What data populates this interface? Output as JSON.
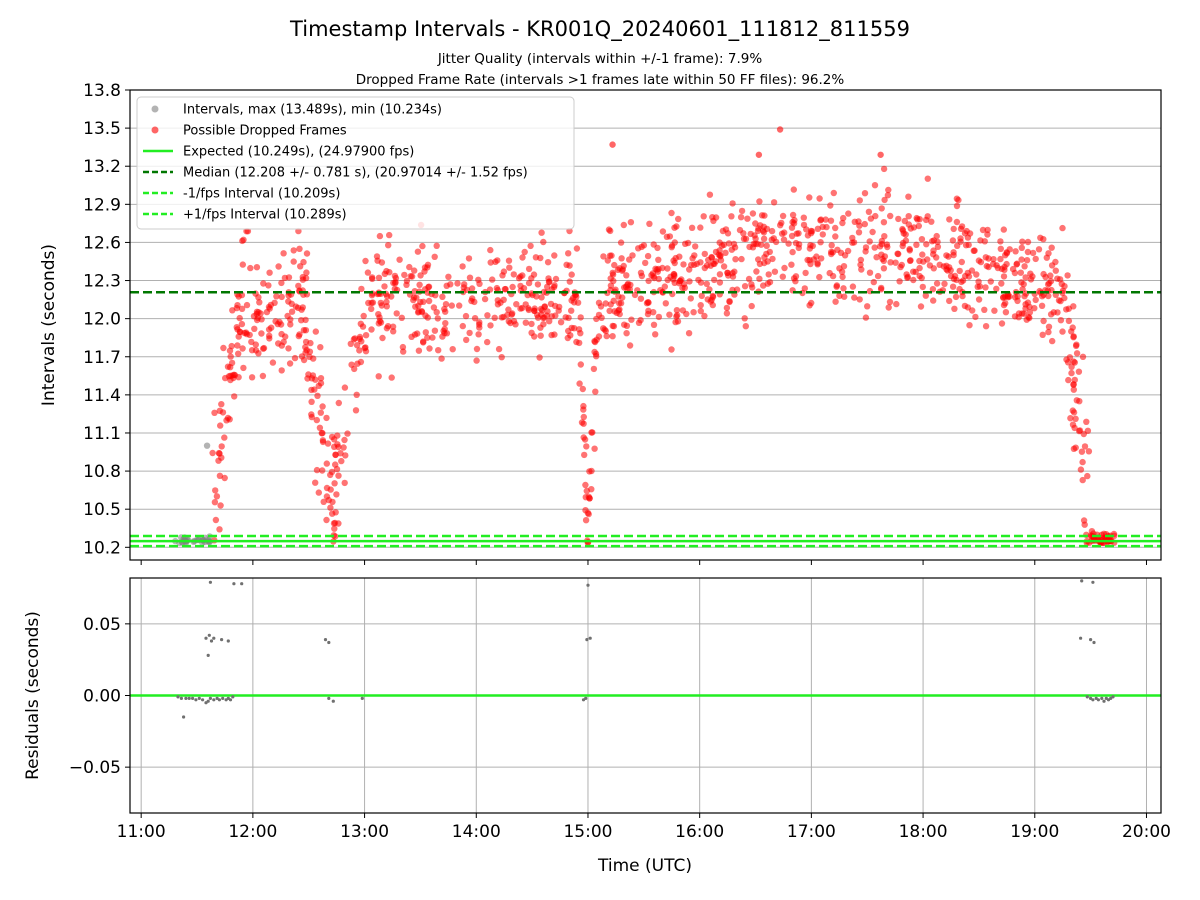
{
  "title": "Timestamp Intervals - KR001Q_20240601_111812_811559",
  "subtitle_1": "Jitter Quality (intervals within +/-1 frame): 7.9%",
  "subtitle_2": "Dropped Frame Rate (intervals >1 frames late within 50 FF files): 96.2%",
  "x_label": "Time (UTC)",
  "colors": {
    "dropped": "#ff0000",
    "intervals": "#808080",
    "expected": "#22ee22",
    "median": "#007700",
    "grid": "#b0b0b0"
  },
  "chart_data": [
    {
      "type": "scatter",
      "ylabel": "Intervals (seconds)",
      "ylim": [
        10.1,
        13.8
      ],
      "yticks": [
        10.2,
        10.5,
        10.8,
        11.1,
        11.4,
        11.7,
        12.0,
        12.3,
        12.6,
        12.9,
        13.2,
        13.5,
        13.8
      ],
      "ytick_labels": [
        "10.2",
        "10.5",
        "10.8",
        "11.1",
        "11.4",
        "11.7",
        "12.0",
        "12.3",
        "12.6",
        "12.9",
        "13.2",
        "13.5",
        "13.8"
      ],
      "xlim": [
        10.9,
        20.13
      ],
      "grid": true,
      "legend_position": "top-left",
      "legend": [
        {
          "label": "Intervals, max (13.489s), min (10.234s)",
          "style": "gray-dot"
        },
        {
          "label": "Possible Dropped Frames",
          "style": "red-dot"
        },
        {
          "label": "Expected (10.249s), (24.97900 fps)",
          "style": "green-solid"
        },
        {
          "label": "Median (12.208 +/- 0.781 s), (20.97014 +/- 1.52 fps)",
          "style": "darkgreen-dashed"
        },
        {
          "label": "-1/fps Interval (10.209s)",
          "style": "green-dashed"
        },
        {
          "label": "+1/fps Interval (10.289s)",
          "style": "green-dashed"
        }
      ],
      "hlines": {
        "expected": 10.249,
        "median": 12.208,
        "minus_one": 10.209,
        "plus_one": 10.289
      },
      "regions": [
        {
          "t0": 11.62,
          "t1": 11.98,
          "base": 10.26,
          "peak": 12.4,
          "curve": "rise",
          "n": 70
        },
        {
          "t0": 11.98,
          "t1": 12.5,
          "base": 11.95,
          "peak": 12.2,
          "curve": "flat",
          "n": 90
        },
        {
          "t0": 12.45,
          "t1": 12.72,
          "base": 11.8,
          "peak": 10.5,
          "curve": "fall",
          "n": 55
        },
        {
          "t0": 12.72,
          "t1": 12.98,
          "base": 10.4,
          "peak": 12.0,
          "curve": "rise",
          "n": 45
        },
        {
          "t0": 12.98,
          "t1": 14.92,
          "base": 12.08,
          "peak": 12.15,
          "curve": "flat",
          "n": 300
        },
        {
          "t0": 14.92,
          "t1": 15.0,
          "base": 11.8,
          "peak": 10.3,
          "curve": "fall",
          "n": 24
        },
        {
          "t0": 15.0,
          "t1": 15.08,
          "base": 10.35,
          "peak": 11.8,
          "curve": "rise",
          "n": 20
        },
        {
          "t0": 15.08,
          "t1": 19.3,
          "base": 12.2,
          "peak": 12.55,
          "curve": "arch",
          "n": 700
        },
        {
          "t0": 19.3,
          "t1": 19.5,
          "base": 11.8,
          "peak": 10.4,
          "curve": "fall",
          "n": 50
        },
        {
          "t0": 19.5,
          "t1": 19.72,
          "base": 10.28,
          "peak": 10.26,
          "curve": "flat",
          "n": 45
        },
        {
          "t0": 11.3,
          "t1": 11.62,
          "base": 10.25,
          "peak": 10.25,
          "curve": "flat",
          "n": 30,
          "color": "gray"
        }
      ],
      "extremes": [
        {
          "t": 16.72,
          "v": 13.489
        },
        {
          "t": 15.22,
          "v": 13.37
        },
        {
          "t": 16.53,
          "v": 13.29
        },
        {
          "t": 17.62,
          "v": 13.29
        },
        {
          "t": 11.59,
          "v": 11.0
        }
      ]
    },
    {
      "type": "scatter",
      "ylabel": "Residuals (seconds)",
      "ylim": [
        -0.082,
        0.082
      ],
      "yticks": [
        0.05,
        0.0,
        -0.05
      ],
      "ytick_labels": [
        "0.05",
        "0.00",
        "−0.05"
      ],
      "xlim": [
        10.9,
        20.13
      ],
      "xticks": [
        11,
        12,
        13,
        14,
        15,
        16,
        17,
        18,
        19,
        20
      ],
      "xtick_labels": [
        "11:00",
        "12:00",
        "13:00",
        "14:00",
        "15:00",
        "16:00",
        "17:00",
        "18:00",
        "19:00",
        "20:00"
      ],
      "grid": true,
      "points": [
        [
          11.33,
          -0.001
        ],
        [
          11.36,
          -0.002
        ],
        [
          11.38,
          -0.015
        ],
        [
          11.4,
          -0.002
        ],
        [
          11.43,
          -0.002
        ],
        [
          11.46,
          -0.002
        ],
        [
          11.49,
          -0.003
        ],
        [
          11.52,
          -0.002
        ],
        [
          11.55,
          -0.003
        ],
        [
          11.58,
          -0.005
        ],
        [
          11.6,
          -0.004
        ],
        [
          11.62,
          -0.002
        ],
        [
          11.65,
          -0.003
        ],
        [
          11.68,
          -0.002
        ],
        [
          11.7,
          -0.003
        ],
        [
          11.73,
          -0.002
        ],
        [
          11.76,
          -0.003
        ],
        [
          11.78,
          -0.002
        ],
        [
          11.8,
          -0.003
        ],
        [
          11.82,
          -0.001
        ],
        [
          11.58,
          0.04
        ],
        [
          11.61,
          0.042
        ],
        [
          11.63,
          0.038
        ],
        [
          11.65,
          0.04
        ],
        [
          11.72,
          0.039
        ],
        [
          11.78,
          0.038
        ],
        [
          11.6,
          0.028
        ],
        [
          11.62,
          0.079
        ],
        [
          11.83,
          0.078
        ],
        [
          11.9,
          0.078
        ],
        [
          12.65,
          0.039
        ],
        [
          12.68,
          0.037
        ],
        [
          12.68,
          -0.002
        ],
        [
          12.72,
          -0.004
        ],
        [
          12.98,
          -0.002
        ],
        [
          14.96,
          -0.003
        ],
        [
          14.98,
          -0.002
        ],
        [
          14.99,
          0.039
        ],
        [
          15.02,
          0.04
        ],
        [
          15.0,
          0.077
        ],
        [
          19.41,
          0.04
        ],
        [
          19.5,
          0.039
        ],
        [
          19.53,
          0.037
        ],
        [
          19.52,
          0.079
        ],
        [
          19.42,
          0.08
        ],
        [
          19.47,
          -0.001
        ],
        [
          19.5,
          -0.002
        ],
        [
          19.52,
          -0.003
        ],
        [
          19.55,
          -0.002
        ],
        [
          19.57,
          -0.003
        ],
        [
          19.6,
          -0.002
        ],
        [
          19.62,
          -0.004
        ],
        [
          19.64,
          -0.002
        ],
        [
          19.66,
          -0.003
        ],
        [
          19.68,
          -0.002
        ],
        [
          19.7,
          -0.001
        ]
      ]
    }
  ]
}
